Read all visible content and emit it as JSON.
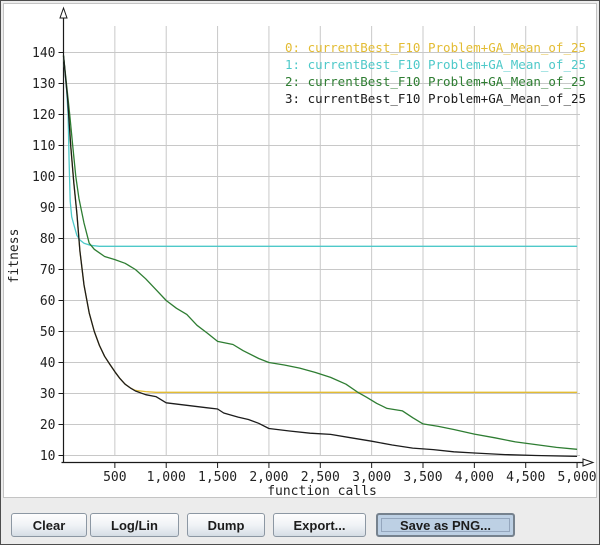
{
  "window": {
    "background": "#ececec",
    "border_color": "#4d4d4d",
    "panel_background": "#ffffff"
  },
  "chart_data": {
    "type": "line",
    "title": "",
    "xlabel": "function calls",
    "ylabel": "fitness",
    "xlim": [
      0,
      5000
    ],
    "ylim": [
      10,
      140
    ],
    "grid": true,
    "grid_color": "#c8c8c8",
    "axis_color": "#1a1a1a",
    "legend_position": "top-right",
    "x_ticks": [
      500,
      1000,
      1500,
      2000,
      2500,
      3000,
      3500,
      4000,
      4500,
      5000
    ],
    "x_tick_labels": [
      "500",
      "1,000",
      "1,500",
      "2,000",
      "2,500",
      "3,000",
      "3,500",
      "4,000",
      "4,500",
      "5,000"
    ],
    "y_ticks": [
      10,
      20,
      30,
      40,
      50,
      60,
      70,
      80,
      90,
      100,
      110,
      120,
      130,
      140
    ],
    "series": [
      {
        "name": "0: currentBest_F10 Problem+GA_Mean_of_25",
        "color": "#e3bc33",
        "points": [
          [
            0,
            139
          ],
          [
            40,
            125
          ],
          [
            70,
            110
          ],
          [
            100,
            98
          ],
          [
            130,
            88
          ],
          [
            160,
            76
          ],
          [
            200,
            65
          ],
          [
            250,
            56
          ],
          [
            300,
            50
          ],
          [
            350,
            45.5
          ],
          [
            400,
            42
          ],
          [
            450,
            39.5
          ],
          [
            500,
            37
          ],
          [
            550,
            34.8
          ],
          [
            600,
            33
          ],
          [
            650,
            31.8
          ],
          [
            700,
            31
          ],
          [
            800,
            30.6
          ],
          [
            900,
            30.4
          ],
          [
            1500,
            30.4
          ],
          [
            3000,
            30.4
          ],
          [
            5000,
            30.4
          ]
        ]
      },
      {
        "name": "1: currentBest_F10 Problem+GA_Mean_of_25",
        "color": "#4ec9c9",
        "points": [
          [
            0,
            139
          ],
          [
            30,
            128
          ],
          [
            45,
            120
          ],
          [
            55,
            105
          ],
          [
            65,
            92
          ],
          [
            80,
            87
          ],
          [
            100,
            84.5
          ],
          [
            130,
            81
          ],
          [
            160,
            79.5
          ],
          [
            200,
            78.5
          ],
          [
            260,
            77.8
          ],
          [
            350,
            77.5
          ],
          [
            2000,
            77.5
          ],
          [
            5000,
            77.5
          ]
        ]
      },
      {
        "name": "2: currentBest_F10 Problem+GA_Mean_of_25",
        "color": "#2e7d32",
        "points": [
          [
            0,
            139
          ],
          [
            60,
            120
          ],
          [
            90,
            110
          ],
          [
            120,
            100
          ],
          [
            150,
            93
          ],
          [
            200,
            85
          ],
          [
            250,
            78.5
          ],
          [
            300,
            76.5
          ],
          [
            400,
            74.2
          ],
          [
            500,
            73.2
          ],
          [
            600,
            72
          ],
          [
            700,
            70
          ],
          [
            800,
            67
          ],
          [
            900,
            63.5
          ],
          [
            1000,
            60
          ],
          [
            1100,
            57.5
          ],
          [
            1200,
            55.5
          ],
          [
            1300,
            52
          ],
          [
            1400,
            49.5
          ],
          [
            1500,
            46.8
          ],
          [
            1650,
            45.8
          ],
          [
            1750,
            43.8
          ],
          [
            1900,
            41.3
          ],
          [
            2000,
            40
          ],
          [
            2150,
            39.2
          ],
          [
            2300,
            38.2
          ],
          [
            2450,
            36.8
          ],
          [
            2600,
            35.2
          ],
          [
            2750,
            33
          ],
          [
            2870,
            30.3
          ],
          [
            2950,
            28.8
          ],
          [
            3050,
            26.8
          ],
          [
            3150,
            25.2
          ],
          [
            3300,
            24.4
          ],
          [
            3400,
            22.2
          ],
          [
            3500,
            20.2
          ],
          [
            3650,
            19.4
          ],
          [
            3800,
            18.4
          ],
          [
            4000,
            16.9
          ],
          [
            4200,
            15.7
          ],
          [
            4400,
            14.4
          ],
          [
            4600,
            13.5
          ],
          [
            4800,
            12.6
          ],
          [
            5000,
            12
          ]
        ]
      },
      {
        "name": "3: currentBest_F10 Problem+GA_Mean_of_25",
        "color": "#1c1c1c",
        "points": [
          [
            0,
            139
          ],
          [
            40,
            125
          ],
          [
            70,
            110
          ],
          [
            100,
            98
          ],
          [
            130,
            88
          ],
          [
            160,
            76
          ],
          [
            200,
            65
          ],
          [
            250,
            56
          ],
          [
            300,
            50
          ],
          [
            350,
            45.5
          ],
          [
            400,
            42
          ],
          [
            450,
            39.5
          ],
          [
            500,
            37
          ],
          [
            550,
            34.8
          ],
          [
            600,
            33
          ],
          [
            650,
            31.8
          ],
          [
            700,
            30.8
          ],
          [
            800,
            29.6
          ],
          [
            900,
            29
          ],
          [
            1000,
            27
          ],
          [
            1200,
            26.2
          ],
          [
            1400,
            25.4
          ],
          [
            1500,
            25
          ],
          [
            1560,
            23.7
          ],
          [
            1700,
            22.4
          ],
          [
            1800,
            21.6
          ],
          [
            1900,
            20.4
          ],
          [
            2000,
            18.7
          ],
          [
            2200,
            17.9
          ],
          [
            2400,
            17.2
          ],
          [
            2600,
            16.8
          ],
          [
            2800,
            15.7
          ],
          [
            3000,
            14.6
          ],
          [
            3200,
            13.4
          ],
          [
            3400,
            12.4
          ],
          [
            3600,
            11.9
          ],
          [
            3800,
            11.2
          ],
          [
            4000,
            10.8
          ],
          [
            4300,
            10.3
          ],
          [
            4600,
            10
          ],
          [
            5000,
            9.7
          ]
        ]
      }
    ]
  },
  "buttons": [
    {
      "label": "Clear",
      "focused": false
    },
    {
      "label": "Log/Lin",
      "focused": false
    },
    {
      "label": "Dump",
      "focused": false
    },
    {
      "label": "Export...",
      "focused": false
    },
    {
      "label": "Save as PNG...",
      "focused": true
    }
  ]
}
